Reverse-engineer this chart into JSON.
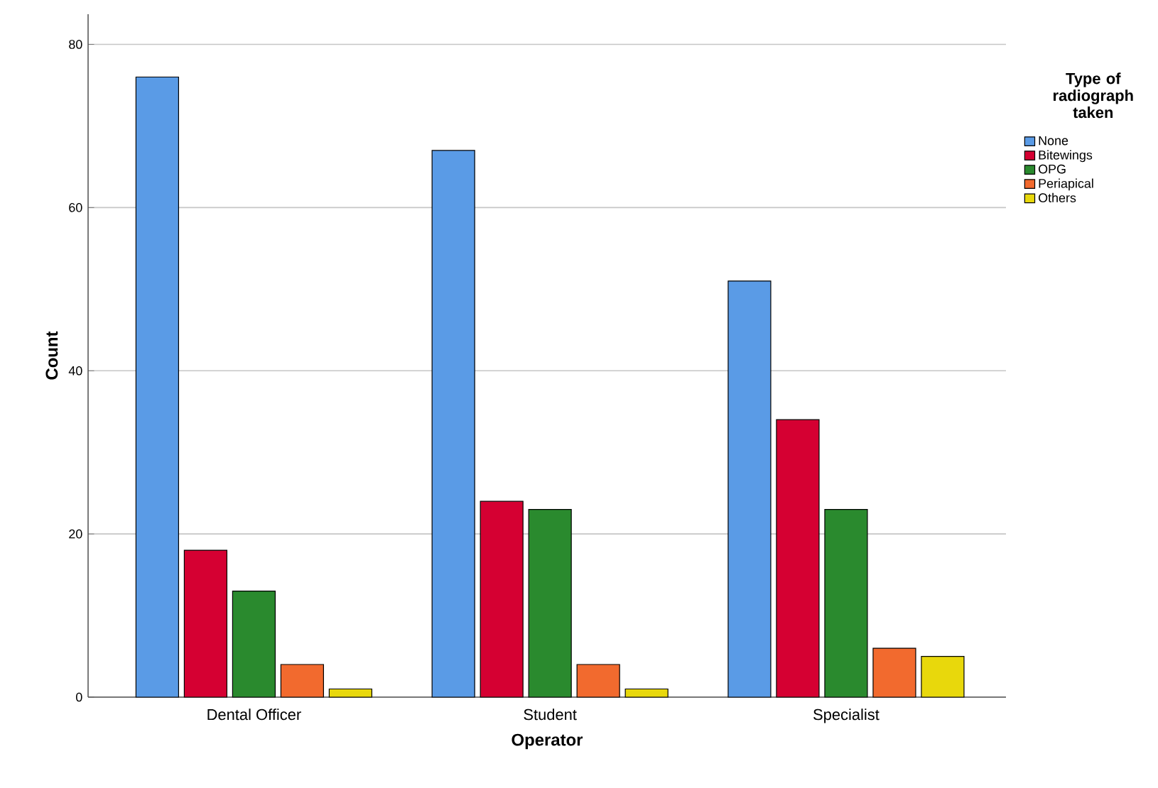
{
  "chart_data": {
    "type": "bar",
    "xlabel": "Operator",
    "ylabel": "Count",
    "legend_title": "Type of radiograph taken",
    "categories": [
      "Dental Officer",
      "Student",
      "Specialist"
    ],
    "series": [
      {
        "name": "None",
        "color": "#5a9be6",
        "values": [
          76,
          67,
          51
        ]
      },
      {
        "name": "Bitewings",
        "color": "#d50032",
        "values": [
          18,
          24,
          34
        ]
      },
      {
        "name": "OPG",
        "color": "#2a8a2e",
        "values": [
          13,
          23,
          23
        ]
      },
      {
        "name": "Periapical",
        "color": "#f26a2e",
        "values": [
          4,
          4,
          6
        ]
      },
      {
        "name": "Others",
        "color": "#e8d80c",
        "values": [
          1,
          1,
          5
        ]
      }
    ],
    "ylim": [
      0,
      83.7
    ],
    "yticks": [
      0,
      20,
      40,
      60,
      80
    ],
    "grid": "y",
    "legend": "top right"
  }
}
